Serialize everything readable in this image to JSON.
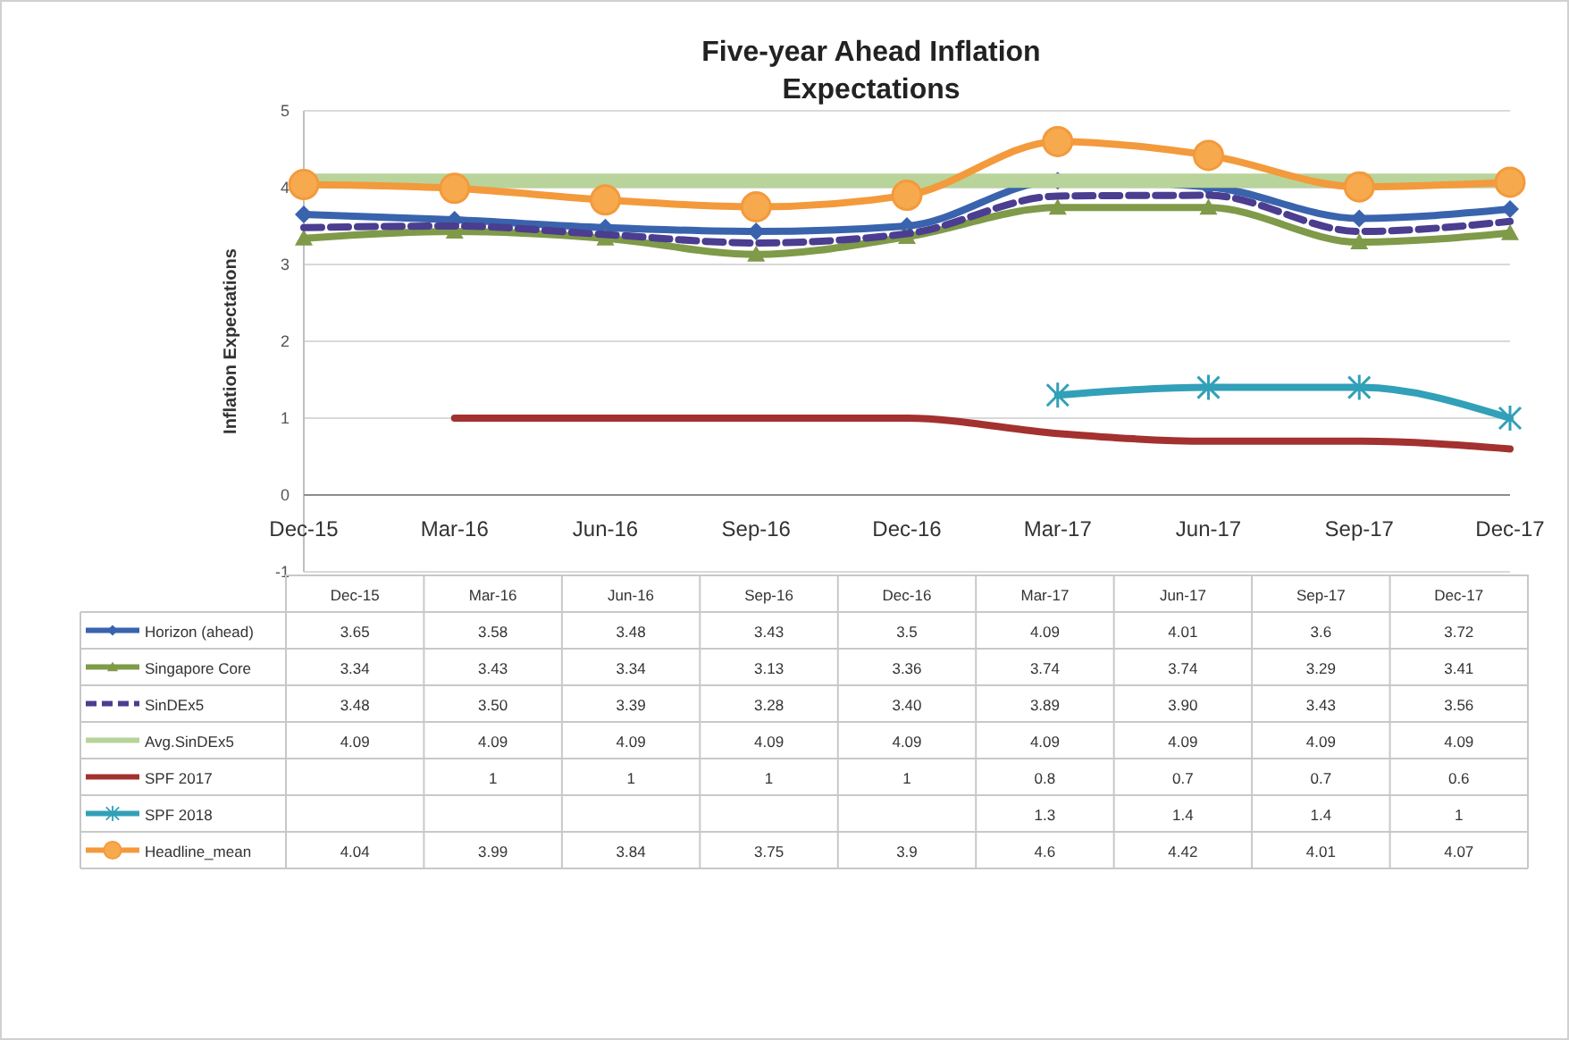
{
  "chart_data": {
    "type": "line",
    "title": "Five-year Ahead Inflation Expectations",
    "ylabel": "Inflation Expectations",
    "categories": [
      "Dec-15",
      "Mar-16",
      "Jun-16",
      "Sep-16",
      "Dec-16",
      "Mar-17",
      "Jun-17",
      "Sep-17",
      "Dec-17"
    ],
    "ylim": [
      -1,
      5
    ],
    "yticks": [
      -1,
      0,
      1,
      2,
      3,
      4,
      5
    ],
    "grid": "y",
    "legend": "bottom",
    "series": [
      {
        "name": "Horizon (ahead)",
        "color": "#3a63ad",
        "marker": "diamond",
        "line_style": "solid",
        "values": [
          3.65,
          3.58,
          3.48,
          3.43,
          3.5,
          4.09,
          4.01,
          3.6,
          3.72
        ],
        "value_labels": [
          "3.65",
          "3.58",
          "3.48",
          "3.43",
          "3.5",
          "4.09",
          "4.01",
          "3.6",
          "3.72"
        ]
      },
      {
        "name": "Singapore Core",
        "color": "#7f9a48",
        "marker": "triangle",
        "line_style": "solid",
        "values": [
          3.34,
          3.43,
          3.34,
          3.13,
          3.36,
          3.74,
          3.74,
          3.29,
          3.41
        ],
        "value_labels": [
          "3.34",
          "3.43",
          "3.34",
          "3.13",
          "3.36",
          "3.74",
          "3.74",
          "3.29",
          "3.41"
        ]
      },
      {
        "name": "SinDEx5",
        "color": "#4b3d8f",
        "marker": "none",
        "line_style": "dashed",
        "values": [
          3.48,
          3.5,
          3.39,
          3.28,
          3.4,
          3.89,
          3.9,
          3.43,
          3.56
        ],
        "value_labels": [
          "3.48",
          "3.50",
          "3.39",
          "3.28",
          "3.40",
          "3.89",
          "3.90",
          "3.43",
          "3.56"
        ]
      },
      {
        "name": "Avg.SinDEx5",
        "color": "#b8d49a",
        "marker": "none",
        "line_style": "solid",
        "values": [
          4.09,
          4.09,
          4.09,
          4.09,
          4.09,
          4.09,
          4.09,
          4.09,
          4.09
        ],
        "value_labels": [
          "4.09",
          "4.09",
          "4.09",
          "4.09",
          "4.09",
          "4.09",
          "4.09",
          "4.09",
          "4.09"
        ]
      },
      {
        "name": "SPF 2017",
        "color": "#a3312f",
        "marker": "none",
        "line_style": "solid",
        "values": [
          null,
          1,
          1,
          1,
          1,
          0.8,
          0.7,
          0.7,
          0.6
        ],
        "value_labels": [
          null,
          "1",
          "1",
          "1",
          "1",
          "0.8",
          "0.7",
          "0.7",
          "0.6"
        ]
      },
      {
        "name": "SPF 2018",
        "color": "#31a0b8",
        "marker": "cross",
        "line_style": "solid",
        "values": [
          null,
          null,
          null,
          null,
          null,
          1.3,
          1.4,
          1.4,
          1
        ],
        "value_labels": [
          null,
          null,
          null,
          null,
          null,
          "1.3",
          "1.4",
          "1.4",
          "1"
        ]
      },
      {
        "name": "Headline_mean",
        "color": "#f39a3c",
        "marker": "circle",
        "line_style": "solid",
        "values": [
          4.04,
          3.99,
          3.84,
          3.75,
          3.9,
          4.6,
          4.42,
          4.01,
          4.07
        ],
        "value_labels": [
          "4.04",
          "3.99",
          "3.84",
          "3.75",
          "3.9",
          "4.6",
          "4.42",
          "4.01",
          "4.07"
        ]
      }
    ]
  }
}
